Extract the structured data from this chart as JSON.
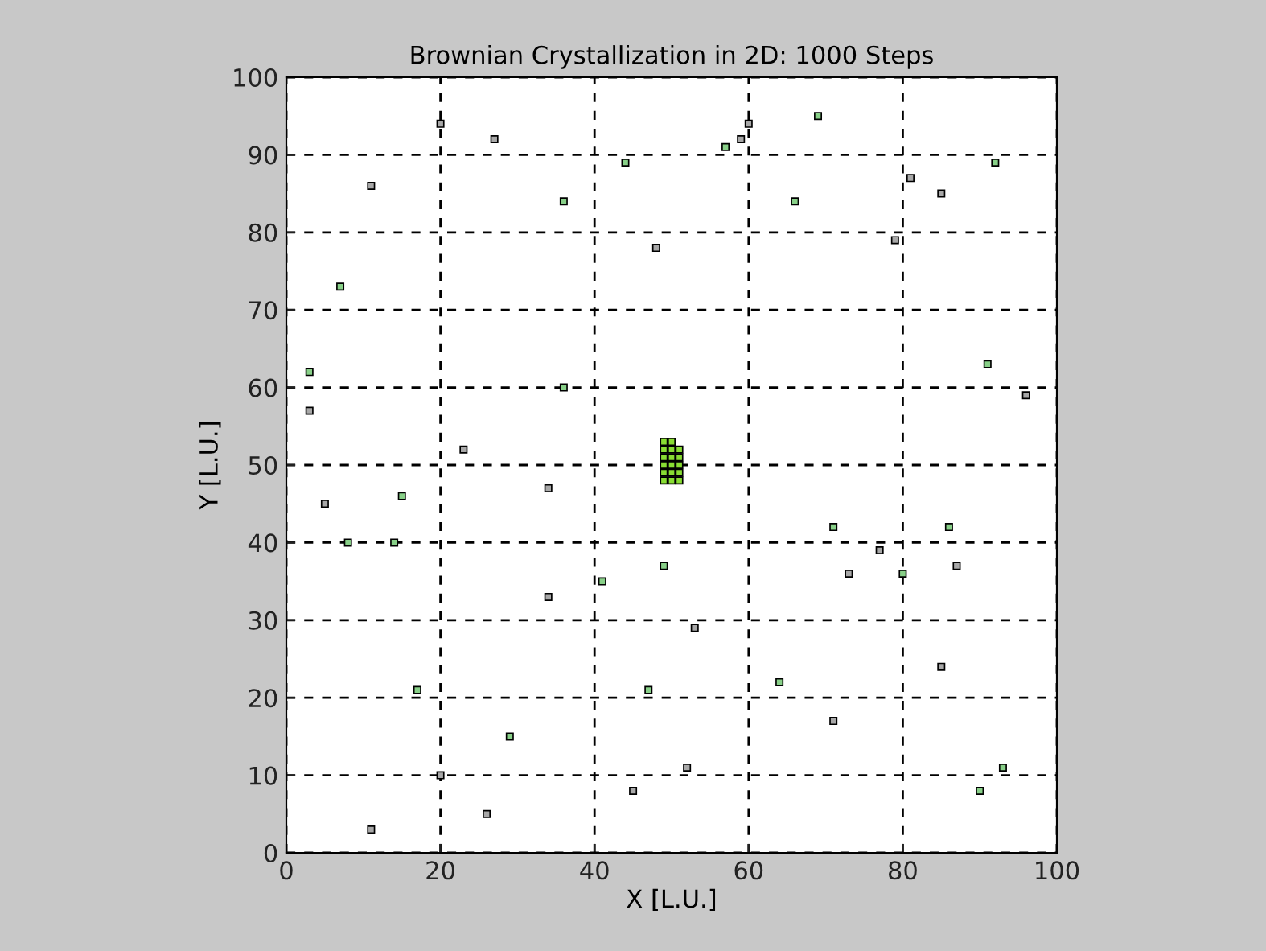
{
  "chart_data": {
    "type": "scatter",
    "title": "Brownian Crystallization in 2D: 1000 Steps",
    "xlabel": "X [L.U.]",
    "ylabel": "Y [L.U.]",
    "xlim": [
      0,
      100
    ],
    "ylim": [
      0,
      100
    ],
    "xticks": [
      0,
      20,
      40,
      60,
      80,
      100
    ],
    "yticks": [
      0,
      10,
      20,
      30,
      40,
      50,
      60,
      70,
      80,
      90,
      100
    ],
    "grid": true,
    "marker": "square",
    "series": [
      {
        "color": "#a8a8a8",
        "x": [
          20,
          27,
          11,
          48,
          3,
          23,
          60,
          59,
          81,
          85,
          79,
          96,
          5,
          34,
          34,
          20,
          26,
          11,
          45,
          77,
          73,
          87,
          53,
          85,
          71,
          52
        ],
        "values": [
          94,
          92,
          86,
          78,
          57,
          52,
          94,
          92,
          87,
          85,
          79,
          59,
          45,
          47,
          33,
          10,
          5,
          3,
          8,
          39,
          36,
          37,
          29,
          24,
          17,
          11
        ]
      },
      {
        "color": "#88d088",
        "x": [
          44,
          36,
          7,
          3,
          36,
          57,
          69,
          92,
          66,
          91,
          15,
          8,
          14,
          41,
          49,
          17,
          47,
          29,
          71,
          86,
          80,
          64,
          93,
          90
        ],
        "values": [
          89,
          84,
          73,
          62,
          60,
          91,
          95,
          89,
          84,
          63,
          46,
          40,
          40,
          35,
          37,
          21,
          21,
          15,
          42,
          42,
          36,
          22,
          11,
          8
        ]
      },
      {
        "color": "#88dd33",
        "x": [
          49,
          49,
          49,
          49,
          49,
          49,
          50,
          50,
          50,
          50,
          50,
          50,
          51,
          51,
          51,
          51,
          51
        ],
        "values": [
          48,
          49,
          50,
          51,
          52,
          53,
          48,
          49,
          50,
          51,
          52,
          53,
          48,
          49,
          50,
          51,
          52
        ]
      }
    ]
  }
}
